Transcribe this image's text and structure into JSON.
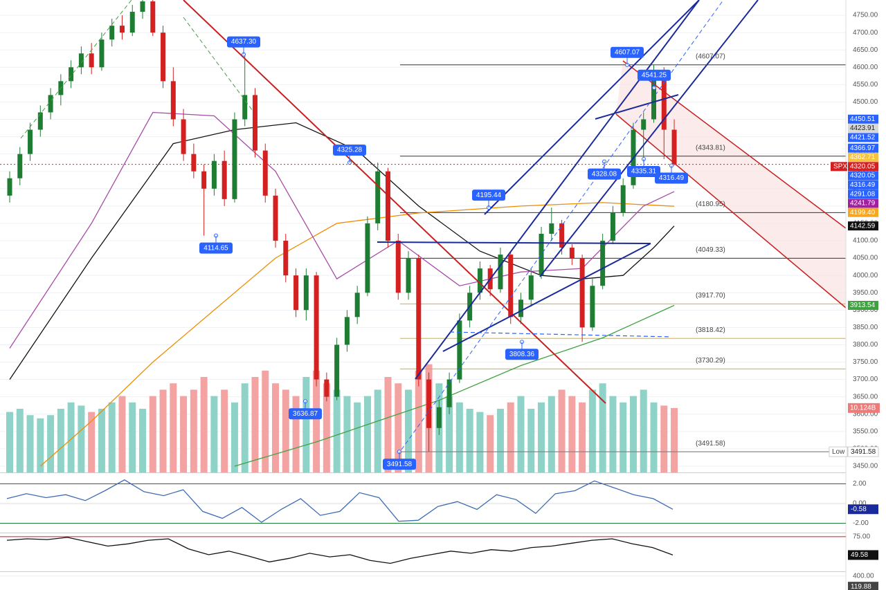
{
  "chart_data": {
    "type": "candlestick",
    "symbol": "SPX",
    "ylim": [
      3432,
      4794
    ],
    "yticks": [
      {
        "value": 3450,
        "label": "3450.00"
      },
      {
        "value": 3500,
        "label": "3500.00"
      },
      {
        "value": 3550,
        "label": "3550.00"
      },
      {
        "value": 3600,
        "label": "3600.00"
      },
      {
        "value": 3650,
        "label": "3650.00"
      },
      {
        "value": 3700,
        "label": "3700.00"
      },
      {
        "value": 3750,
        "label": "3750.00"
      },
      {
        "value": 3800,
        "label": "3800.00"
      },
      {
        "value": 3850,
        "label": "3850.00"
      },
      {
        "value": 3900,
        "label": "3900.00"
      },
      {
        "value": 3950,
        "label": "3950.00"
      },
      {
        "value": 4000,
        "label": "4000.00"
      },
      {
        "value": 4050,
        "label": "4050.00"
      },
      {
        "value": 4100,
        "label": "4100.00"
      },
      {
        "value": 4150,
        "label": "4150.00"
      },
      {
        "value": 4200,
        "label": "4200.00"
      },
      {
        "value": 4250,
        "label": "4250.00"
      },
      {
        "value": 4300,
        "label": "4300.00"
      },
      {
        "value": 4350,
        "label": "4350.00"
      },
      {
        "value": 4400,
        "label": "4400.00"
      },
      {
        "value": 4450,
        "label": "4450.00"
      },
      {
        "value": 4500,
        "label": "4500.00"
      },
      {
        "value": 4550,
        "label": "4550.00"
      },
      {
        "value": 4600,
        "label": "4600.00"
      },
      {
        "value": 4650,
        "label": "4650.00"
      },
      {
        "value": 4700,
        "label": "4700.00"
      },
      {
        "value": 4750,
        "label": "4750.00"
      }
    ],
    "up_color": "#1e7d32",
    "down_color": "#d32020",
    "candles": [
      [
        4230,
        4300,
        4210,
        4280
      ],
      [
        4280,
        4370,
        4260,
        4350
      ],
      [
        4350,
        4440,
        4330,
        4420
      ],
      [
        4420,
        4490,
        4400,
        4470
      ],
      [
        4470,
        4540,
        4450,
        4520
      ],
      [
        4520,
        4580,
        4490,
        4560
      ],
      [
        4560,
        4620,
        4540,
        4600
      ],
      [
        4600,
        4660,
        4580,
        4640
      ],
      [
        4640,
        4670,
        4580,
        4600
      ],
      [
        4600,
        4700,
        4590,
        4680
      ],
      [
        4680,
        4740,
        4660,
        4720
      ],
      [
        4720,
        4750,
        4680,
        4700
      ],
      [
        4700,
        4780,
        4690,
        4760
      ],
      [
        4760,
        4800,
        4740,
        4790
      ],
      [
        4790,
        4800,
        4690,
        4700
      ],
      [
        4700,
        4720,
        4540,
        4560
      ],
      [
        4560,
        4600,
        4430,
        4450
      ],
      [
        4450,
        4480,
        4330,
        4350
      ],
      [
        4350,
        4380,
        4280,
        4300
      ],
      [
        4300,
        4320,
        4114.65,
        4250
      ],
      [
        4250,
        4350,
        4230,
        4330
      ],
      [
        4330,
        4360,
        4200,
        4220
      ],
      [
        4220,
        4470,
        4210,
        4450
      ],
      [
        4450,
        4637.3,
        4430,
        4520
      ],
      [
        4520,
        4540,
        4340,
        4360
      ],
      [
        4360,
        4380,
        4210,
        4230
      ],
      [
        4230,
        4250,
        4080,
        4100
      ],
      [
        4100,
        4120,
        3980,
        4000
      ],
      [
        4000,
        4020,
        3880,
        3900
      ],
      [
        3900,
        4020,
        3870,
        4000
      ],
      [
        4000,
        4010,
        3680,
        3700
      ],
      [
        3700,
        3720,
        3636.87,
        3650
      ],
      [
        3650,
        3820,
        3640,
        3800
      ],
      [
        3800,
        3900,
        3780,
        3880
      ],
      [
        3880,
        3970,
        3860,
        3950
      ],
      [
        3950,
        4170,
        3940,
        4150
      ],
      [
        4150,
        4325.28,
        4130,
        4300
      ],
      [
        4300,
        4310,
        4080,
        4100
      ],
      [
        4100,
        4120,
        3930,
        3950
      ],
      [
        3950,
        4070,
        3930,
        4050
      ],
      [
        4050,
        4060,
        3680,
        3700
      ],
      [
        3700,
        3720,
        3491.58,
        3560
      ],
      [
        3560,
        3640,
        3540,
        3620
      ],
      [
        3620,
        3720,
        3600,
        3700
      ],
      [
        3700,
        3890,
        3690,
        3870
      ],
      [
        3870,
        3970,
        3850,
        3950
      ],
      [
        3950,
        4040,
        3930,
        4020
      ],
      [
        4020,
        4030,
        3940,
        3960
      ],
      [
        3960,
        4080,
        3950,
        4060
      ],
      [
        4060,
        4070,
        3860,
        3880
      ],
      [
        3880,
        3950,
        3860,
        3930
      ],
      [
        3930,
        4020,
        3910,
        4000
      ],
      [
        4000,
        4140,
        3990,
        4120
      ],
      [
        4120,
        4195.44,
        4100,
        4150
      ],
      [
        4150,
        4160,
        4060,
        4080
      ],
      [
        4080,
        4090,
        4030,
        4050
      ],
      [
        4050,
        4060,
        3808.36,
        3850
      ],
      [
        3850,
        3990,
        3840,
        3970
      ],
      [
        3970,
        4120,
        3960,
        4100
      ],
      [
        4100,
        4200,
        4090,
        4180
      ],
      [
        4180,
        4280,
        4170,
        4260
      ],
      [
        4260,
        4440,
        4250,
        4420
      ],
      [
        4420,
        4470,
        4328.08,
        4450
      ],
      [
        4450,
        4607.07,
        4440,
        4590
      ],
      [
        4590,
        4600,
        4335.31,
        4420
      ],
      [
        4420,
        4450,
        4316.49,
        4320.05
      ]
    ],
    "volume": {
      "up_color": "#8fd3c8",
      "down_color": "#f4a3a3",
      "values": [
        9.5,
        10,
        9,
        8.5,
        9,
        10,
        11,
        10.5,
        9.5,
        10,
        11,
        12,
        11,
        10,
        12,
        13,
        14,
        12,
        13,
        15,
        12,
        13,
        11,
        14,
        15,
        16,
        14,
        13,
        12,
        15,
        16,
        14,
        13,
        12,
        11,
        12,
        13,
        15,
        14,
        13,
        16,
        17,
        14,
        12,
        11,
        10,
        9.5,
        9,
        10,
        11,
        12,
        10,
        11,
        12,
        13,
        12,
        11,
        13,
        14,
        12,
        11,
        12,
        13,
        11,
        10.5,
        10.124
      ],
      "last": {
        "value": 10.124,
        "label": "10.124B"
      }
    },
    "overlays": [
      {
        "color": "#111111",
        "x": [
          0,
          8,
          16,
          22,
          28,
          34,
          40,
          46,
          52,
          56,
          60,
          63,
          65
        ],
        "values": [
          3700,
          4050,
          4380,
          4420,
          4440,
          4360,
          4200,
          4070,
          4000,
          3990,
          4000,
          4080,
          4142.59
        ]
      },
      {
        "color": "#f08c00",
        "x": [
          3,
          8,
          14,
          20,
          26,
          32,
          40,
          50,
          58,
          65
        ],
        "values": [
          3450,
          3580,
          3750,
          3900,
          4050,
          4150,
          4180,
          4200,
          4210,
          4199.4
        ]
      },
      {
        "color": "#3fa13f",
        "x": [
          22,
          30,
          36,
          42,
          50,
          58,
          65
        ],
        "values": [
          3450,
          3520,
          3580,
          3640,
          3740,
          3820,
          3913.54
        ]
      },
      {
        "color": "#a64ca6",
        "x": [
          0,
          8,
          14,
          20,
          26,
          32,
          38,
          44,
          50,
          56,
          62,
          65
        ],
        "values": [
          3790,
          4150,
          4470,
          4460,
          4300,
          3990,
          4100,
          3970,
          4010,
          4020,
          4200,
          4241.79
        ]
      }
    ],
    "levels": [
      {
        "value": 4607.07,
        "label": "(4607.07)",
        "color": "#333333"
      },
      {
        "value": 4343.81,
        "label": "(4343.81)",
        "color": "#333333"
      },
      {
        "value": 4180.95,
        "label": "(4180.95)",
        "color": "#333333"
      },
      {
        "value": 4049.33,
        "label": "(4049.33)",
        "color": "#333333"
      },
      {
        "value": 3917.7,
        "label": "(3917.70)",
        "color": "#e0b000"
      },
      {
        "value": 3818.42,
        "label": "(3818.42)",
        "color": "#e0b000"
      },
      {
        "value": 3730.29,
        "label": "(3730.29)",
        "color": "#e0b000"
      },
      {
        "value": 3491.58,
        "label": "(3491.58)",
        "color": "#666666"
      }
    ],
    "annotations": [
      {
        "value": 4637.3,
        "label": "4637.30"
      },
      {
        "value": 4325.28,
        "label": "4325.28"
      },
      {
        "value": 4114.65,
        "label": "4114.65"
      },
      {
        "value": 3636.87,
        "label": "3636.87"
      },
      {
        "value": 3491.58,
        "label": "3491.58"
      },
      {
        "value": 4195.44,
        "label": "4195.44"
      },
      {
        "value": 3808.36,
        "label": "3808.36"
      },
      {
        "value": 4328.08,
        "label": "4328.08"
      },
      {
        "value": 4335.31,
        "label": "4335.31"
      },
      {
        "value": 4316.49,
        "label": "4316.49"
      },
      {
        "value": 4607.07,
        "label": "4607.07"
      },
      {
        "value": 4541.25,
        "label": "4541.25"
      }
    ],
    "price_badges": [
      {
        "value": 4450.51,
        "label": "4450.51",
        "color": "#2962ff"
      },
      {
        "value": 4423.91,
        "label": "4423.91",
        "color": "#d8d8d8"
      },
      {
        "value": 4421.52,
        "label": "4421.52",
        "color": "#2962ff"
      },
      {
        "value": 4366.97,
        "label": "4366.97",
        "color": "#2962ff"
      },
      {
        "value": 4362.71,
        "label": "4362.71",
        "color": "#f5c242"
      },
      {
        "value": 4320.05,
        "label": "4320.05",
        "color": "#d32020"
      },
      {
        "value": 4320.05,
        "label": "4320.05",
        "color": "#2962ff"
      },
      {
        "value": 4316.49,
        "label": "4316.49",
        "color": "#2962ff"
      },
      {
        "value": 4291.08,
        "label": "4291.08",
        "color": "#2962ff"
      },
      {
        "value": 4241.79,
        "label": "4241.79",
        "color": "#a020a0"
      },
      {
        "value": 4199.4,
        "label": "4199.40",
        "color": "#f5a623"
      },
      {
        "value": 4142.59,
        "label": "4142.59",
        "color": "#111111"
      },
      {
        "value": 3913.54,
        "label": "3913.54",
        "color": "#3fa13f"
      }
    ],
    "low": {
      "value": 3491.58,
      "label": "3491.58",
      "tag": "Low"
    },
    "panes": [
      {
        "type": "line",
        "color": "#3d6bb3",
        "ylim": [
          -2.95,
          3.02
        ],
        "yticks": [
          {
            "value": 2,
            "label": "2.00"
          },
          {
            "value": 0,
            "label": "0.00"
          },
          {
            "value": -2,
            "label": "-2.00"
          }
        ],
        "values": [
          0.5,
          1.0,
          0.6,
          0.9,
          0.3,
          1.3,
          2.4,
          1.2,
          0.8,
          1.4,
          -0.8,
          -1.5,
          -0.4,
          -1.9,
          -0.6,
          0.5,
          -1.2,
          -0.8,
          1.1,
          0.6,
          -1.8,
          -1.7,
          -0.3,
          0.2,
          -0.6,
          0.9,
          0.4,
          -1.0,
          1.0,
          1.3,
          2.3,
          1.6,
          0.9,
          0.5,
          -0.58
        ],
        "last": {
          "value": -0.58,
          "label": "-0.58"
        }
      },
      {
        "type": "line",
        "color": "#111111",
        "ylim": [
          27,
          79.7
        ],
        "yticks": [
          {
            "value": 75,
            "label": "75.00"
          }
        ],
        "values": [
          70,
          72,
          71,
          74,
          68,
          62,
          65,
          70,
          72,
          58,
          50,
          55,
          48,
          40,
          45,
          52,
          47,
          50,
          42,
          38,
          45,
          50,
          55,
          52,
          57,
          55,
          60,
          62,
          66,
          70,
          72,
          65,
          60,
          49.58
        ],
        "last": {
          "value": 49.58,
          "label": "49.58"
        }
      },
      {
        "type": "bar",
        "color": "#26a69a",
        "ylim": [
          32,
          505
        ],
        "yticks": [
          {
            "value": 400,
            "label": "400.00"
          }
        ],
        "last": {
          "value": 119.88,
          "label": "119.88"
        }
      }
    ]
  }
}
